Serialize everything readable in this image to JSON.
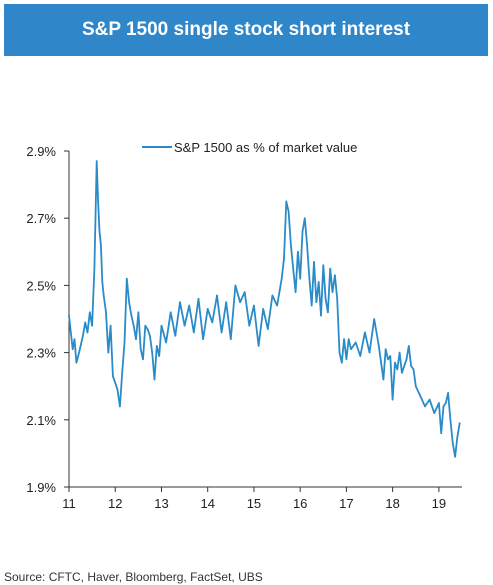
{
  "title": "S&P 1500 single stock short interest",
  "source": "Source: CFTC, Haver, Bloomberg, FactSet, UBS",
  "colors": {
    "banner": "#2f86c8",
    "line": "#2a8bc9",
    "axis": "#333333"
  },
  "chart_data": {
    "type": "line",
    "title": "S&P 1500 single stock short interest",
    "xlabel": "",
    "ylabel": "",
    "xlim": [
      11,
      19.5
    ],
    "ylim": [
      1.9,
      2.9
    ],
    "x_ticks": [
      {
        "value": 11,
        "label": "11"
      },
      {
        "value": 12,
        "label": "12"
      },
      {
        "value": 13,
        "label": "13"
      },
      {
        "value": 14,
        "label": "14"
      },
      {
        "value": 15,
        "label": "15"
      },
      {
        "value": 16,
        "label": "16"
      },
      {
        "value": 17,
        "label": "17"
      },
      {
        "value": 18,
        "label": "18"
      },
      {
        "value": 19,
        "label": "19"
      }
    ],
    "y_ticks": [
      {
        "value": 1.9,
        "label": "1.9%"
      },
      {
        "value": 2.1,
        "label": "2.1%"
      },
      {
        "value": 2.3,
        "label": "2.3%"
      },
      {
        "value": 2.5,
        "label": "2.5%"
      },
      {
        "value": 2.7,
        "label": "2.7%"
      },
      {
        "value": 2.9,
        "label": "2.9%"
      }
    ],
    "legend_position": "top",
    "grid": false,
    "series": [
      {
        "name": "S&P 1500 as % of market value",
        "x": [
          11.0,
          11.04,
          11.08,
          11.12,
          11.16,
          11.2,
          11.25,
          11.3,
          11.35,
          11.4,
          11.45,
          11.5,
          11.55,
          11.6,
          11.63,
          11.66,
          11.69,
          11.72,
          11.75,
          11.8,
          11.85,
          11.9,
          11.95,
          12.0,
          12.05,
          12.1,
          12.15,
          12.2,
          12.25,
          12.3,
          12.35,
          12.4,
          12.45,
          12.5,
          12.55,
          12.6,
          12.65,
          12.7,
          12.75,
          12.8,
          12.85,
          12.9,
          12.95,
          13.0,
          13.1,
          13.2,
          13.3,
          13.4,
          13.5,
          13.6,
          13.7,
          13.8,
          13.9,
          14.0,
          14.1,
          14.2,
          14.3,
          14.4,
          14.5,
          14.6,
          14.7,
          14.8,
          14.9,
          15.0,
          15.1,
          15.2,
          15.3,
          15.4,
          15.5,
          15.6,
          15.65,
          15.7,
          15.75,
          15.8,
          15.85,
          15.9,
          15.95,
          16.0,
          16.05,
          16.1,
          16.15,
          16.2,
          16.25,
          16.3,
          16.35,
          16.4,
          16.45,
          16.5,
          16.55,
          16.6,
          16.65,
          16.7,
          16.75,
          16.8,
          16.85,
          16.9,
          16.95,
          17.0,
          17.05,
          17.1,
          17.2,
          17.3,
          17.4,
          17.5,
          17.6,
          17.7,
          17.75,
          17.8,
          17.85,
          17.9,
          17.95,
          18.0,
          18.05,
          18.1,
          18.15,
          18.2,
          18.3,
          18.35,
          18.4,
          18.45,
          18.5,
          18.6,
          18.7,
          18.8,
          18.9,
          19.0,
          19.05,
          19.1,
          19.15,
          19.2,
          19.25,
          19.3,
          19.35,
          19.4,
          19.45
        ],
        "values": [
          2.41,
          2.36,
          2.31,
          2.34,
          2.27,
          2.29,
          2.32,
          2.35,
          2.39,
          2.36,
          2.42,
          2.38,
          2.55,
          2.87,
          2.75,
          2.66,
          2.62,
          2.51,
          2.47,
          2.42,
          2.3,
          2.38,
          2.23,
          2.21,
          2.19,
          2.14,
          2.24,
          2.33,
          2.52,
          2.45,
          2.41,
          2.38,
          2.34,
          2.42,
          2.31,
          2.28,
          2.38,
          2.37,
          2.35,
          2.3,
          2.22,
          2.32,
          2.29,
          2.38,
          2.33,
          2.42,
          2.35,
          2.45,
          2.38,
          2.44,
          2.36,
          2.46,
          2.34,
          2.43,
          2.39,
          2.47,
          2.36,
          2.45,
          2.34,
          2.5,
          2.45,
          2.48,
          2.38,
          2.44,
          2.32,
          2.43,
          2.37,
          2.47,
          2.44,
          2.52,
          2.58,
          2.75,
          2.72,
          2.62,
          2.55,
          2.48,
          2.6,
          2.52,
          2.66,
          2.7,
          2.62,
          2.52,
          2.44,
          2.57,
          2.45,
          2.51,
          2.41,
          2.56,
          2.46,
          2.42,
          2.55,
          2.48,
          2.53,
          2.46,
          2.3,
          2.27,
          2.34,
          2.28,
          2.34,
          2.31,
          2.33,
          2.29,
          2.36,
          2.3,
          2.4,
          2.32,
          2.27,
          2.22,
          2.31,
          2.28,
          2.29,
          2.16,
          2.27,
          2.25,
          2.3,
          2.24,
          2.28,
          2.32,
          2.26,
          2.25,
          2.2,
          2.17,
          2.14,
          2.16,
          2.12,
          2.15,
          2.06,
          2.14,
          2.15,
          2.18,
          2.1,
          2.03,
          1.99,
          2.05,
          2.09
        ]
      }
    ]
  }
}
